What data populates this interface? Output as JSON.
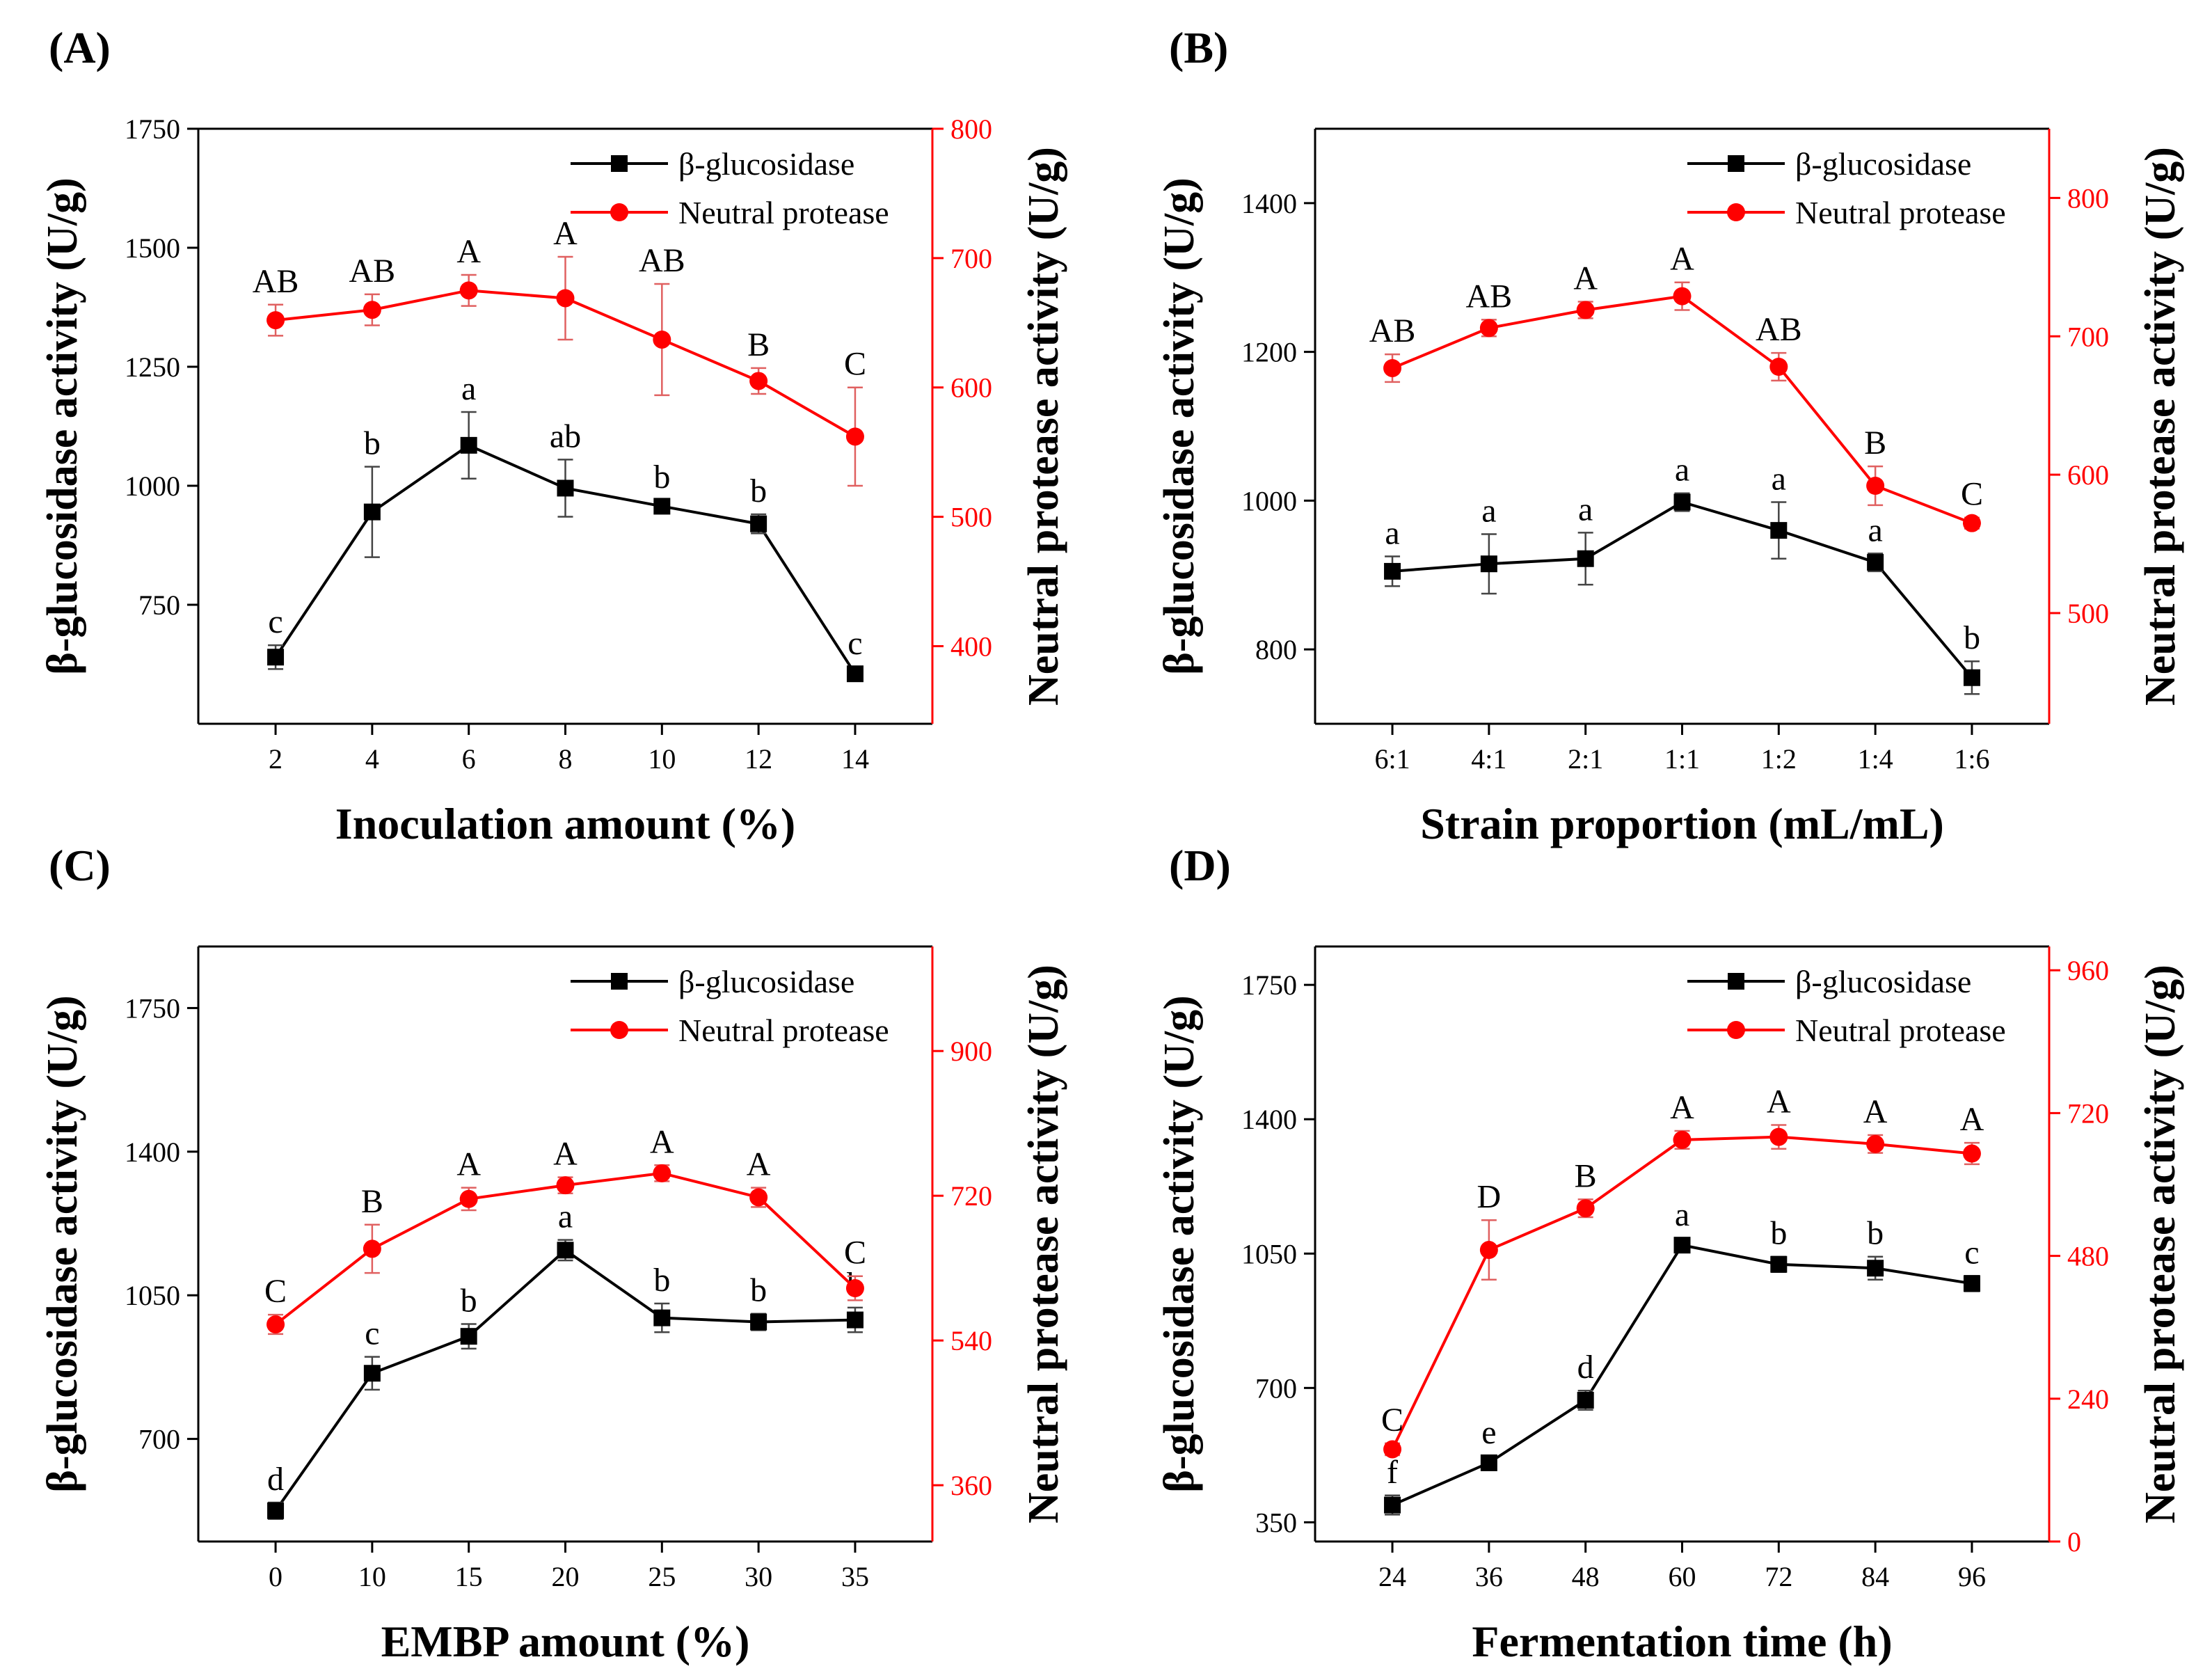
{
  "colors": {
    "glucosidase": "#000000",
    "protease": "#ff0000",
    "axes": "#000000"
  },
  "chart_data": [
    {
      "panel": "(A)",
      "type": "line",
      "xlabel": "Inoculation amount (%)",
      "ylabel_left": "β-glucosidase activity (U/g)",
      "ylabel_right": "Neutral protease activity (U/g)",
      "categories": [
        "2",
        "4",
        "6",
        "8",
        "10",
        "12",
        "14"
      ],
      "ylim_left": [
        500,
        1750
      ],
      "yticks_left": [
        750,
        1000,
        1250,
        1500,
        1750
      ],
      "ylim_right": [
        340,
        800
      ],
      "yticks_right": [
        400,
        500,
        600,
        700,
        800
      ],
      "legend_position": "top-right",
      "series": [
        {
          "name": "β-glucosidase",
          "axis": "left",
          "color": "#000000",
          "marker": "square",
          "values": [
            640,
            945,
            1085,
            995,
            957,
            920,
            605
          ],
          "errors": [
            25,
            95,
            70,
            60,
            12,
            20,
            15
          ],
          "labels": [
            "c",
            "b",
            "a",
            "ab",
            "b",
            "b",
            "c"
          ]
        },
        {
          "name": "Neutral protease",
          "axis": "right",
          "color": "#ff0000",
          "marker": "circle",
          "values": [
            652,
            660,
            675,
            669,
            637,
            605,
            562
          ],
          "errors": [
            12,
            12,
            12,
            32,
            43,
            10,
            38
          ],
          "labels": [
            "AB",
            "AB",
            "A",
            "A",
            "AB",
            "B",
            "C"
          ]
        }
      ]
    },
    {
      "panel": "(B)",
      "type": "line",
      "xlabel": "Strain proportion (mL/mL)",
      "ylabel_left": "β-glucosidase activity (U/g)",
      "ylabel_right": "Neutral protease activity (U/g)",
      "categories": [
        "6:1",
        "4:1",
        "2:1",
        "1:1",
        "1:2",
        "1:4",
        "1:6"
      ],
      "ylim_left": [
        700,
        1500
      ],
      "yticks_left": [
        800,
        1000,
        1200,
        1400
      ],
      "ylim_right": [
        420,
        850
      ],
      "yticks_right": [
        500,
        600,
        700,
        800
      ],
      "legend_position": "top-right",
      "series": [
        {
          "name": "β-glucosidase",
          "axis": "left",
          "color": "#000000",
          "marker": "square",
          "values": [
            905,
            915,
            922,
            998,
            960,
            917,
            762
          ],
          "errors": [
            20,
            40,
            35,
            12,
            38,
            12,
            22
          ],
          "labels": [
            "a",
            "a",
            "a",
            "a",
            "a",
            "a",
            "b"
          ]
        },
        {
          "name": "Neutral protease",
          "axis": "right",
          "color": "#ff0000",
          "marker": "circle",
          "values": [
            677,
            706,
            719,
            729,
            678,
            592,
            565
          ],
          "errors": [
            10,
            6,
            6,
            10,
            10,
            14,
            4
          ],
          "labels": [
            "AB",
            "AB",
            "A",
            "A",
            "AB",
            "B",
            "C"
          ]
        }
      ]
    },
    {
      "panel": "(C)",
      "type": "line",
      "xlabel": "EMBP amount (%)",
      "ylabel_left": "β-glucosidase activity (U/g)",
      "ylabel_right": "Neutral protease activity (U/g)",
      "categories": [
        "0",
        "10",
        "15",
        "20",
        "25",
        "30",
        "35"
      ],
      "ylim_left": [
        450,
        1900
      ],
      "yticks_left": [
        700,
        1050,
        1400,
        1750
      ],
      "ylim_right": [
        290,
        1030
      ],
      "yticks_right": [
        360,
        540,
        720,
        900
      ],
      "legend_position": "top-right",
      "series": [
        {
          "name": "β-glucosidase",
          "axis": "left",
          "color": "#000000",
          "marker": "square",
          "values": [
            525,
            860,
            950,
            1160,
            995,
            985,
            990
          ],
          "errors": [
            20,
            40,
            30,
            25,
            35,
            20,
            30
          ],
          "labels": [
            "d",
            "c",
            "b",
            "a",
            "b",
            "b",
            "b"
          ]
        },
        {
          "name": "Neutral protease",
          "axis": "right",
          "color": "#ff0000",
          "marker": "circle",
          "values": [
            560,
            654,
            716,
            733,
            748,
            718,
            605
          ],
          "errors": [
            12,
            30,
            14,
            10,
            10,
            12,
            15
          ],
          "labels": [
            "C",
            "B",
            "A",
            "A",
            "A",
            "A",
            "C"
          ]
        }
      ]
    },
    {
      "panel": "(D)",
      "type": "line",
      "xlabel": "Fermentation time (h)",
      "ylabel_left": "β-glucosidase activity (U/g)",
      "ylabel_right": "Neutral protease activity (U/g)",
      "categories": [
        "24",
        "36",
        "48",
        "60",
        "72",
        "84",
        "96"
      ],
      "ylim_left": [
        300,
        1850
      ],
      "yticks_left": [
        350,
        700,
        1050,
        1400,
        1750
      ],
      "ylim_right": [
        0,
        1000
      ],
      "yticks_right": [
        0,
        240,
        480,
        720,
        960
      ],
      "legend_position": "top-right",
      "series": [
        {
          "name": "β-glucosidase",
          "axis": "left",
          "color": "#000000",
          "marker": "square",
          "values": [
            395,
            505,
            668,
            1072,
            1022,
            1012,
            972
          ],
          "errors": [
            25,
            18,
            25,
            18,
            20,
            30,
            20
          ],
          "labels": [
            "f",
            "e",
            "d",
            "a",
            "b",
            "b",
            "c"
          ]
        },
        {
          "name": "Neutral protease",
          "axis": "right",
          "color": "#ff0000",
          "marker": "circle",
          "values": [
            155,
            490,
            560,
            675,
            680,
            668,
            652
          ],
          "errors": [
            10,
            50,
            15,
            15,
            20,
            15,
            18
          ],
          "labels": [
            "C",
            "D",
            "B",
            "A",
            "A",
            "A",
            "A"
          ]
        }
      ]
    }
  ]
}
